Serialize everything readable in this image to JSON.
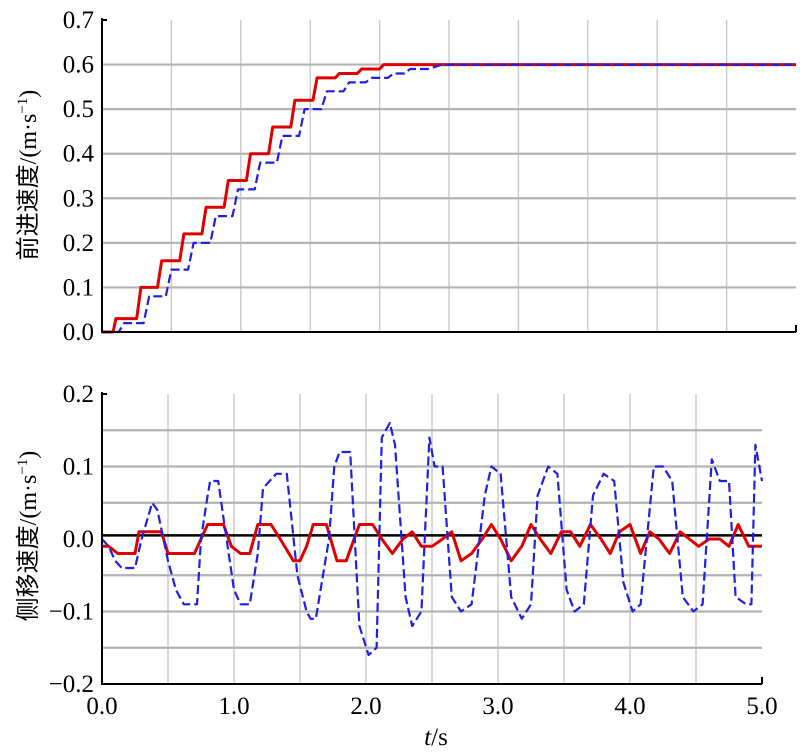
{
  "chart_data": [
    {
      "type": "line",
      "ylabel_main": "前进速度/(m·s",
      "ylabel_sup": "−1",
      "ylabel_close": ")",
      "ylim": [
        0.0,
        0.7
      ],
      "xlim": [
        0.0,
        5.0
      ],
      "yticks": [
        "0.0",
        "0.1",
        "0.2",
        "0.3",
        "0.4",
        "0.5",
        "0.6",
        "0.7"
      ],
      "grid": true,
      "series": [
        {
          "color": "#e00000",
          "style": "solid",
          "x": [
            0.0,
            0.08,
            0.1,
            0.25,
            0.28,
            0.4,
            0.43,
            0.56,
            0.59,
            0.72,
            0.75,
            0.88,
            0.91,
            1.04,
            1.07,
            1.2,
            1.23,
            1.36,
            1.39,
            1.52,
            1.55,
            1.68,
            1.71,
            1.84,
            1.87,
            2.0,
            2.03,
            2.12,
            2.15,
            2.25,
            2.3,
            5.0
          ],
          "y": [
            0.0,
            0.0,
            0.03,
            0.03,
            0.1,
            0.1,
            0.16,
            0.16,
            0.22,
            0.22,
            0.28,
            0.28,
            0.34,
            0.34,
            0.4,
            0.4,
            0.46,
            0.46,
            0.52,
            0.52,
            0.57,
            0.57,
            0.58,
            0.58,
            0.59,
            0.59,
            0.6,
            0.6,
            0.6,
            0.6,
            0.6,
            0.6
          ]
        },
        {
          "color": "#1f1fe6",
          "style": "dashed",
          "x": [
            0.0,
            0.12,
            0.16,
            0.3,
            0.34,
            0.46,
            0.5,
            0.62,
            0.66,
            0.78,
            0.82,
            0.94,
            0.98,
            1.1,
            1.14,
            1.26,
            1.3,
            1.42,
            1.46,
            1.58,
            1.62,
            1.74,
            1.78,
            1.9,
            1.94,
            2.06,
            2.1,
            2.18,
            2.22,
            2.35,
            2.45,
            5.0
          ],
          "y": [
            0.0,
            0.0,
            0.02,
            0.02,
            0.08,
            0.08,
            0.14,
            0.14,
            0.2,
            0.2,
            0.26,
            0.26,
            0.32,
            0.32,
            0.38,
            0.38,
            0.44,
            0.44,
            0.5,
            0.5,
            0.54,
            0.54,
            0.56,
            0.56,
            0.57,
            0.57,
            0.58,
            0.58,
            0.59,
            0.59,
            0.6,
            0.6
          ]
        }
      ]
    },
    {
      "type": "line",
      "ylabel_main": "侧移速度/(m·s",
      "ylabel_sup": "−1",
      "ylabel_close": ")",
      "xlabel_italic": "t",
      "xlabel_rest": "/s",
      "ylim": [
        -0.2,
        0.2
      ],
      "xlim": [
        0.0,
        5.0
      ],
      "xticks": [
        "0.0",
        "1.0",
        "2.0",
        "3.0",
        "4.0",
        "5.0"
      ],
      "yticks": [
        "−0.2",
        "−0.1",
        "0.0",
        "0.1",
        "0.2"
      ],
      "grid": true,
      "series": [
        {
          "color": "#e00000",
          "style": "solid",
          "x": [
            0.0,
            0.05,
            0.12,
            0.25,
            0.28,
            0.35,
            0.45,
            0.5,
            0.55,
            0.7,
            0.75,
            0.8,
            0.92,
            0.98,
            1.05,
            1.12,
            1.18,
            1.22,
            1.28,
            1.35,
            1.45,
            1.5,
            1.55,
            1.6,
            1.7,
            1.78,
            1.85,
            1.95,
            2.05,
            2.12,
            2.2,
            2.28,
            2.35,
            2.42,
            2.5,
            2.58,
            2.65,
            2.72,
            2.8,
            2.88,
            2.95,
            3.02,
            3.1,
            3.18,
            3.25,
            3.32,
            3.4,
            3.48,
            3.55,
            3.62,
            3.7,
            3.78,
            3.85,
            3.92,
            4.0,
            4.08,
            4.15,
            4.22,
            4.3,
            4.38,
            4.45,
            4.52,
            4.6,
            4.68,
            4.75,
            4.82,
            4.9,
            5.0
          ],
          "y": [
            -0.01,
            -0.01,
            -0.02,
            -0.02,
            0.01,
            0.01,
            0.01,
            -0.02,
            -0.02,
            -0.02,
            0.0,
            0.02,
            0.02,
            -0.01,
            -0.02,
            -0.02,
            0.02,
            0.02,
            0.02,
            0.0,
            -0.03,
            -0.03,
            -0.01,
            0.02,
            0.02,
            -0.03,
            -0.03,
            0.02,
            0.02,
            0.0,
            -0.02,
            0.0,
            0.01,
            -0.01,
            -0.01,
            0.0,
            0.01,
            -0.03,
            -0.02,
            0.0,
            0.02,
            0.0,
            -0.03,
            -0.01,
            0.02,
            0.0,
            -0.02,
            0.01,
            0.01,
            -0.01,
            0.02,
            0.0,
            -0.02,
            0.01,
            0.02,
            -0.02,
            0.01,
            0.0,
            -0.02,
            0.01,
            0.0,
            -0.01,
            0.0,
            0.0,
            -0.01,
            0.02,
            -0.01,
            -0.01
          ]
        },
        {
          "color": "#1f1fe6",
          "style": "dashed",
          "x": [
            0.0,
            0.05,
            0.1,
            0.15,
            0.25,
            0.3,
            0.38,
            0.42,
            0.5,
            0.56,
            0.62,
            0.72,
            0.75,
            0.8,
            0.82,
            0.88,
            0.92,
            1.0,
            1.05,
            1.12,
            1.18,
            1.22,
            1.32,
            1.4,
            1.48,
            1.55,
            1.58,
            1.62,
            1.72,
            1.76,
            1.8,
            1.88,
            1.95,
            2.02,
            2.08,
            2.12,
            2.18,
            2.22,
            2.3,
            2.35,
            2.42,
            2.48,
            2.52,
            2.58,
            2.65,
            2.72,
            2.8,
            2.9,
            2.95,
            3.02,
            3.1,
            3.18,
            3.25,
            3.3,
            3.38,
            3.45,
            3.52,
            3.58,
            3.65,
            3.72,
            3.8,
            3.88,
            3.95,
            4.02,
            4.08,
            4.18,
            4.25,
            4.32,
            4.4,
            4.48,
            4.55,
            4.62,
            4.68,
            4.75,
            4.8,
            4.88,
            4.92,
            4.95,
            5.0
          ],
          "y": [
            0.0,
            -0.01,
            -0.03,
            -0.04,
            -0.04,
            0.0,
            0.05,
            0.04,
            -0.03,
            -0.07,
            -0.09,
            -0.09,
            0.0,
            0.06,
            0.08,
            0.08,
            0.03,
            -0.07,
            -0.09,
            -0.09,
            -0.02,
            0.07,
            0.09,
            0.09,
            -0.05,
            -0.1,
            -0.11,
            -0.11,
            0.0,
            0.1,
            0.12,
            0.12,
            -0.12,
            -0.16,
            -0.15,
            0.14,
            0.16,
            0.13,
            -0.08,
            -0.12,
            -0.1,
            0.14,
            0.1,
            0.1,
            -0.08,
            -0.1,
            -0.09,
            0.06,
            0.1,
            0.09,
            -0.08,
            -0.11,
            -0.09,
            0.06,
            0.1,
            0.09,
            -0.07,
            -0.1,
            -0.09,
            0.06,
            0.09,
            0.08,
            -0.06,
            -0.1,
            -0.09,
            0.1,
            0.1,
            0.08,
            -0.08,
            -0.1,
            -0.09,
            0.11,
            0.08,
            0.08,
            -0.08,
            -0.09,
            -0.09,
            0.13,
            0.08
          ]
        }
      ]
    }
  ]
}
